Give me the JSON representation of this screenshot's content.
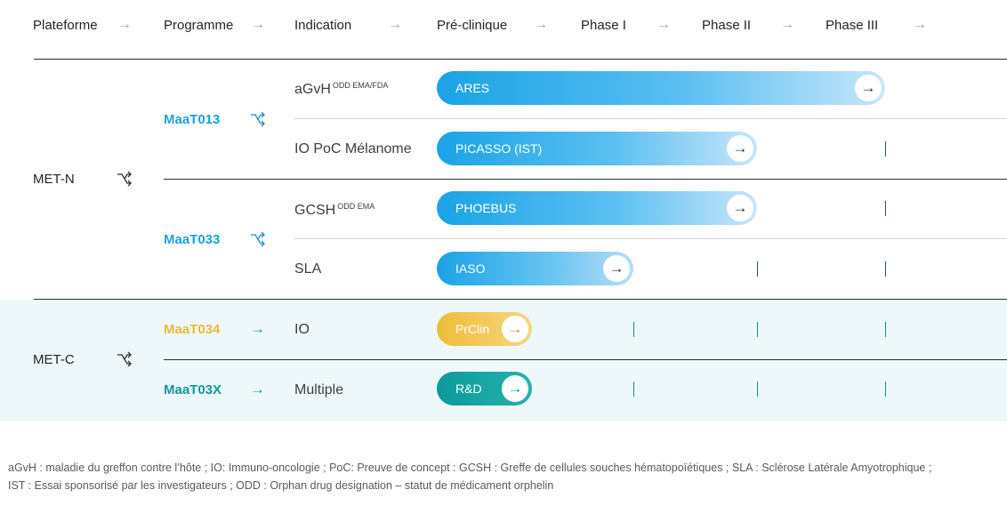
{
  "headers": [
    {
      "label": "Plateforme"
    },
    {
      "label": "Programme"
    },
    {
      "label": "Indication"
    },
    {
      "label": "Pré-clinique"
    },
    {
      "label": "Phase I"
    },
    {
      "label": "Phase II"
    },
    {
      "label": "Phase III"
    }
  ],
  "platforms": {
    "met_n": "MET-N",
    "met_c": "MET-C"
  },
  "programs": {
    "maat013": "MaaT013",
    "maat033": "MaaT033",
    "maat034": "MaaT034",
    "maat03x": "MaaT03X"
  },
  "indications": {
    "agvh": {
      "text": "aGvH",
      "sup": "ODD EMA/FDA"
    },
    "io_poc": {
      "text": "IO PoC Mélanome"
    },
    "gcsh": {
      "text": "GCSH",
      "sup": "ODD EMA"
    },
    "sla": {
      "text": "SLA"
    },
    "io": {
      "text": "IO"
    },
    "multiple": {
      "text": "Multiple"
    }
  },
  "trials": {
    "ares": {
      "label": "ARES",
      "stage": "Phase II"
    },
    "picasso": {
      "label": "PICASSO (IST)",
      "stage": "Phase I"
    },
    "phoebus": {
      "label": "PHOEBUS",
      "stage": "Phase I"
    },
    "iaso": {
      "label": "IASO",
      "stage": "Pré-clinique"
    },
    "prclin": {
      "label": "PrClin",
      "stage": "Pré-clinique"
    },
    "rnd": {
      "label": "R&D",
      "stage": "Pré-clinique"
    }
  },
  "colors": {
    "met_n_program": "#1aa3dc",
    "maat034": "#e9b93a",
    "maat03x": "#0e9a98",
    "blue_pill": "#1aa3e6",
    "teal_pill": "#0b9a9a",
    "yellow_pill": "#eebd38"
  },
  "icons": {
    "header_arrow": "arrow-right-icon",
    "branch": "branch-icon",
    "pill_arrow": "arrow-right-circle-icon"
  },
  "footnote": {
    "line1": "aGvH : maladie du greffon contre l’hôte ; IO: Immuno-oncologie ; PoC: Preuve de concept : GCSH : Greffe de cellules souches hématopoïétiques ; SLA : Sclérose Latérale Amyotrophique ;",
    "line2": "IST : Essai sponsorisé par les investigateurs ; ODD : Orphan drug designation – statut de médicament orphelin"
  }
}
